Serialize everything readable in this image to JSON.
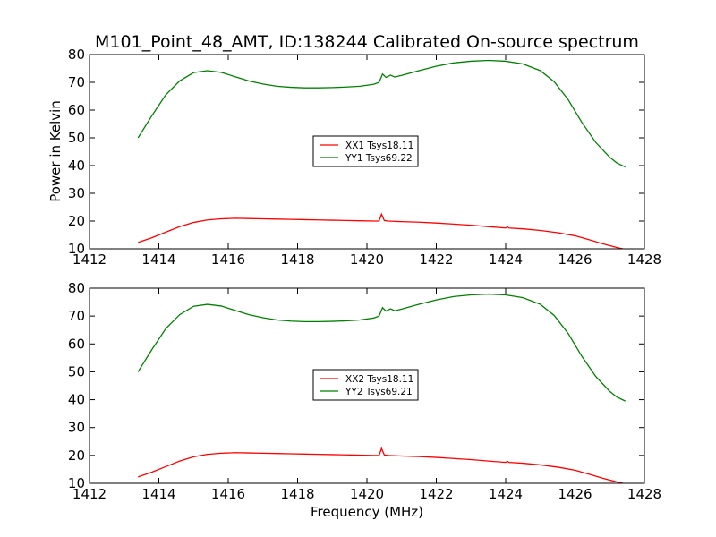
{
  "figure": {
    "title": "M101_Point_48_AMT, ID:138244 Calibrated On-source spectrum",
    "ylabel": "Power in Kelvin",
    "xlabel": "Frequency (MHz)"
  },
  "chart_data": [
    {
      "type": "line",
      "xlim": [
        1412,
        1428
      ],
      "ylim": [
        10,
        80
      ],
      "xticks": [
        1412,
        1414,
        1416,
        1418,
        1420,
        1422,
        1424,
        1426,
        1428
      ],
      "yticks": [
        10,
        20,
        30,
        40,
        50,
        60,
        70,
        80
      ],
      "legend_position": "center",
      "grid": false,
      "series": [
        {
          "name": "XX1 Tsys18.11",
          "color": "#ff0000",
          "x": [
            1413.4,
            1413.8,
            1414.2,
            1414.6,
            1415.0,
            1415.4,
            1415.8,
            1416.2,
            1416.6,
            1417.0,
            1417.4,
            1417.8,
            1418.2,
            1418.6,
            1419.0,
            1419.4,
            1419.8,
            1420.2,
            1420.35,
            1420.42,
            1420.5,
            1420.6,
            1421.0,
            1421.5,
            1422.0,
            1422.5,
            1423.0,
            1423.5,
            1424.0,
            1424.05,
            1424.1,
            1424.5,
            1425.0,
            1425.5,
            1426.0,
            1426.4,
            1426.8,
            1427.2,
            1427.45
          ],
          "values": [
            12.3,
            14.0,
            16.0,
            18.0,
            19.5,
            20.4,
            20.8,
            21.0,
            20.9,
            20.8,
            20.7,
            20.6,
            20.5,
            20.4,
            20.3,
            20.2,
            20.1,
            20.0,
            20.0,
            22.5,
            20.2,
            20.0,
            19.8,
            19.6,
            19.3,
            18.9,
            18.5,
            18.0,
            17.5,
            17.9,
            17.5,
            17.2,
            16.6,
            15.8,
            14.7,
            13.3,
            11.8,
            10.5,
            9.8
          ]
        },
        {
          "name": "YY1 Tsys69.22",
          "color": "#008000",
          "x": [
            1413.4,
            1413.8,
            1414.2,
            1414.6,
            1415.0,
            1415.4,
            1415.8,
            1416.2,
            1416.6,
            1417.0,
            1417.4,
            1417.8,
            1418.2,
            1418.6,
            1419.0,
            1419.4,
            1419.8,
            1420.2,
            1420.35,
            1420.45,
            1420.55,
            1420.68,
            1420.8,
            1421.0,
            1421.5,
            1422.0,
            1422.5,
            1423.0,
            1423.5,
            1424.0,
            1424.5,
            1425.0,
            1425.4,
            1425.8,
            1426.2,
            1426.6,
            1427.0,
            1427.2,
            1427.45
          ],
          "values": [
            50.0,
            58.0,
            65.5,
            70.5,
            73.5,
            74.2,
            73.6,
            72.0,
            70.5,
            69.4,
            68.6,
            68.2,
            68.0,
            68.0,
            68.1,
            68.3,
            68.6,
            69.3,
            70.0,
            73.0,
            71.8,
            72.6,
            71.9,
            72.5,
            74.2,
            75.8,
            77.0,
            77.6,
            77.9,
            77.6,
            76.6,
            74.2,
            70.2,
            63.8,
            55.5,
            48.3,
            43.0,
            41.0,
            39.5
          ]
        }
      ]
    },
    {
      "type": "line",
      "xlim": [
        1412,
        1428
      ],
      "ylim": [
        10,
        80
      ],
      "xticks": [
        1412,
        1414,
        1416,
        1418,
        1420,
        1422,
        1424,
        1426,
        1428
      ],
      "yticks": [
        10,
        20,
        30,
        40,
        50,
        60,
        70,
        80
      ],
      "legend_position": "center",
      "grid": false,
      "series": [
        {
          "name": "XX2 Tsys18.11",
          "color": "#ff0000",
          "x": [
            1413.4,
            1413.8,
            1414.2,
            1414.6,
            1415.0,
            1415.4,
            1415.8,
            1416.2,
            1416.6,
            1417.0,
            1417.4,
            1417.8,
            1418.2,
            1418.6,
            1419.0,
            1419.4,
            1419.8,
            1420.2,
            1420.35,
            1420.42,
            1420.5,
            1420.6,
            1421.0,
            1421.5,
            1422.0,
            1422.5,
            1423.0,
            1423.5,
            1424.0,
            1424.05,
            1424.1,
            1424.5,
            1425.0,
            1425.5,
            1426.0,
            1426.4,
            1426.8,
            1427.2,
            1427.45
          ],
          "values": [
            12.3,
            14.0,
            16.0,
            18.0,
            19.5,
            20.4,
            20.8,
            21.0,
            20.9,
            20.8,
            20.7,
            20.6,
            20.5,
            20.4,
            20.3,
            20.2,
            20.1,
            20.0,
            20.0,
            22.5,
            20.2,
            20.0,
            19.8,
            19.6,
            19.3,
            18.9,
            18.5,
            18.0,
            17.5,
            17.9,
            17.5,
            17.2,
            16.6,
            15.8,
            14.7,
            13.3,
            11.8,
            10.5,
            9.8
          ]
        },
        {
          "name": "YY2 Tsys69.21",
          "color": "#008000",
          "x": [
            1413.4,
            1413.8,
            1414.2,
            1414.6,
            1415.0,
            1415.4,
            1415.8,
            1416.2,
            1416.6,
            1417.0,
            1417.4,
            1417.8,
            1418.2,
            1418.6,
            1419.0,
            1419.4,
            1419.8,
            1420.2,
            1420.35,
            1420.45,
            1420.55,
            1420.68,
            1420.8,
            1421.0,
            1421.5,
            1422.0,
            1422.5,
            1423.0,
            1423.5,
            1424.0,
            1424.5,
            1425.0,
            1425.4,
            1425.8,
            1426.2,
            1426.6,
            1427.0,
            1427.2,
            1427.45
          ],
          "values": [
            50.0,
            58.0,
            65.5,
            70.5,
            73.5,
            74.2,
            73.6,
            72.0,
            70.5,
            69.4,
            68.6,
            68.2,
            68.0,
            68.0,
            68.1,
            68.3,
            68.6,
            69.3,
            70.0,
            73.0,
            71.8,
            72.6,
            71.9,
            72.5,
            74.2,
            75.8,
            77.0,
            77.6,
            77.9,
            77.6,
            76.6,
            74.2,
            70.2,
            63.8,
            55.5,
            48.3,
            43.0,
            41.0,
            39.5
          ]
        }
      ]
    }
  ]
}
